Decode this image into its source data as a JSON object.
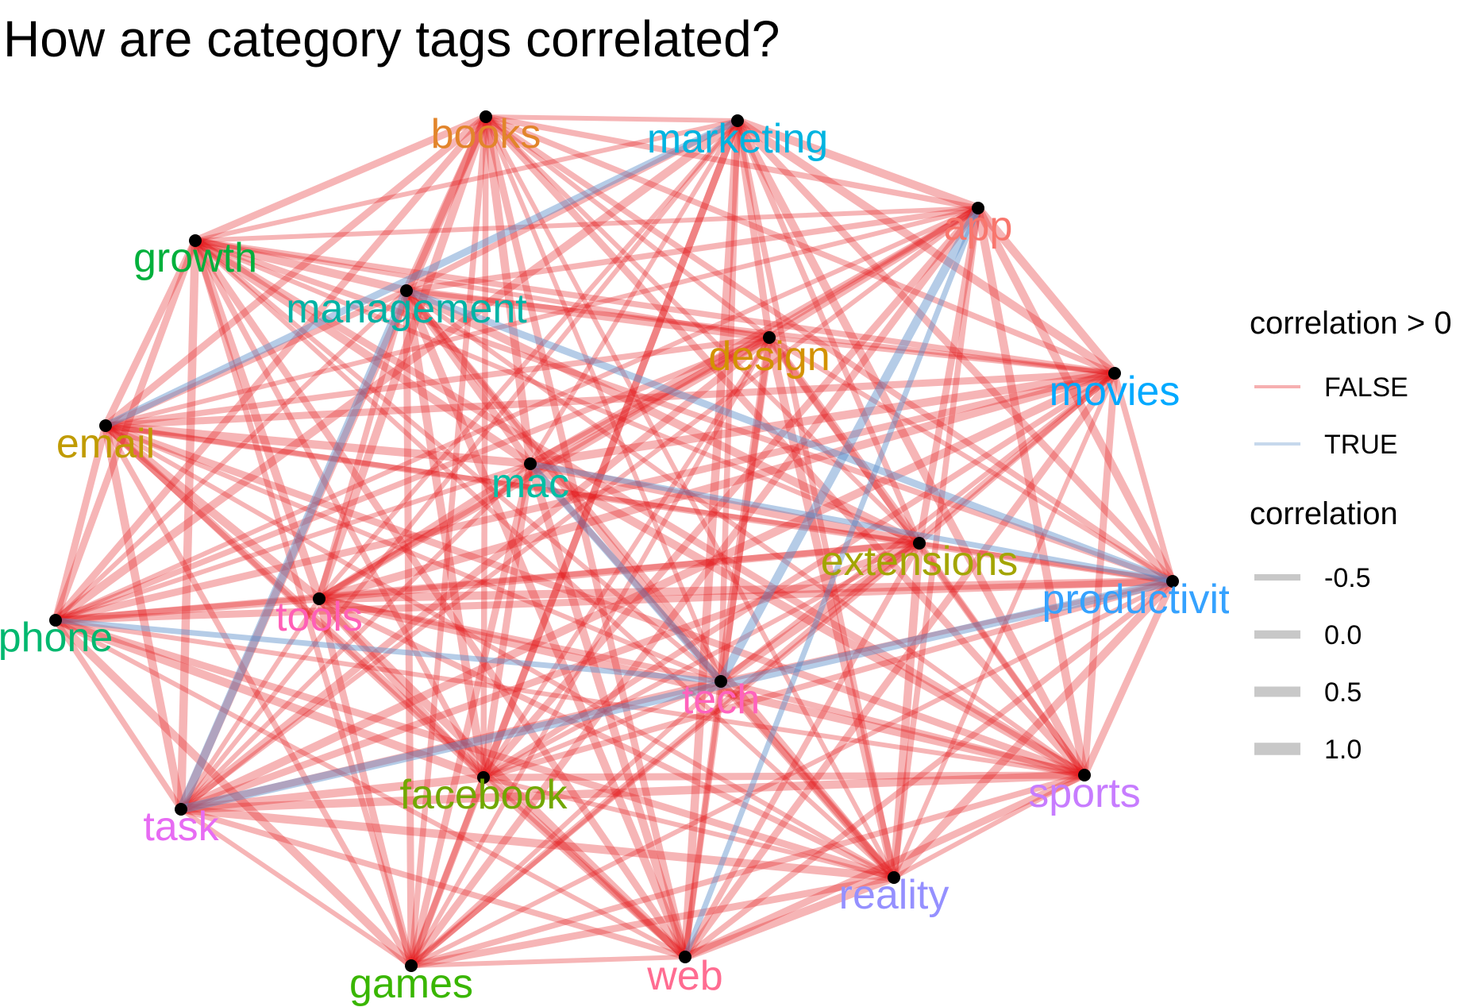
{
  "title": "How are category tags correlated?",
  "colors": {
    "negative_edge": "#e41a1c",
    "positive_edge": "#5b8fc9",
    "node": "#000000",
    "legend_swatch": "#c8c8c8"
  },
  "nodes": [
    {
      "id": "books",
      "label": "books",
      "color": "#e2852b"
    },
    {
      "id": "marketing",
      "label": "marketing",
      "color": "#00b4e0"
    },
    {
      "id": "app",
      "label": "app",
      "color": "#f8766d"
    },
    {
      "id": "growth",
      "label": "growth",
      "color": "#00b03c"
    },
    {
      "id": "management",
      "label": "management",
      "color": "#00b3a5"
    },
    {
      "id": "design",
      "label": "design",
      "color": "#d39200"
    },
    {
      "id": "movies",
      "label": "movies",
      "color": "#00a9ff"
    },
    {
      "id": "email",
      "label": "email",
      "color": "#c09b00"
    },
    {
      "id": "mac",
      "label": "mac",
      "color": "#00bfa4"
    },
    {
      "id": "extensions",
      "label": "extensions",
      "color": "#a3a500"
    },
    {
      "id": "productivity",
      "label": "productivity",
      "color": "#35a2ff"
    },
    {
      "id": "phone",
      "label": "phone",
      "color": "#00b86f"
    },
    {
      "id": "tools",
      "label": "tools",
      "color": "#ff5fb6"
    },
    {
      "id": "tech",
      "label": "tech",
      "color": "#ff62bc"
    },
    {
      "id": "facebook",
      "label": "facebook",
      "color": "#72a800"
    },
    {
      "id": "sports",
      "label": "sports",
      "color": "#c77cff"
    },
    {
      "id": "task",
      "label": "task",
      "color": "#e76bf3"
    },
    {
      "id": "reality",
      "label": "reality",
      "color": "#9590ff"
    },
    {
      "id": "games",
      "label": "games",
      "color": "#39b600"
    },
    {
      "id": "web",
      "label": "web",
      "color": "#ff6c91"
    }
  ],
  "positive_edges": [
    [
      "marketing",
      "email"
    ],
    [
      "management",
      "task"
    ],
    [
      "management",
      "productivity"
    ],
    [
      "mac",
      "productivity"
    ],
    [
      "mac",
      "tech"
    ],
    [
      "app",
      "web"
    ],
    [
      "app",
      "tech"
    ],
    [
      "phone",
      "tech"
    ],
    [
      "task",
      "productivity"
    ]
  ],
  "legend": {
    "color_title": "correlation > 0",
    "color_items": [
      {
        "label": "FALSE",
        "key": "negative_edge"
      },
      {
        "label": "TRUE",
        "key": "positive_edge"
      }
    ],
    "width_title": "correlation",
    "width_items": [
      "-0.5",
      "0.0",
      "0.5",
      "1.0"
    ]
  }
}
